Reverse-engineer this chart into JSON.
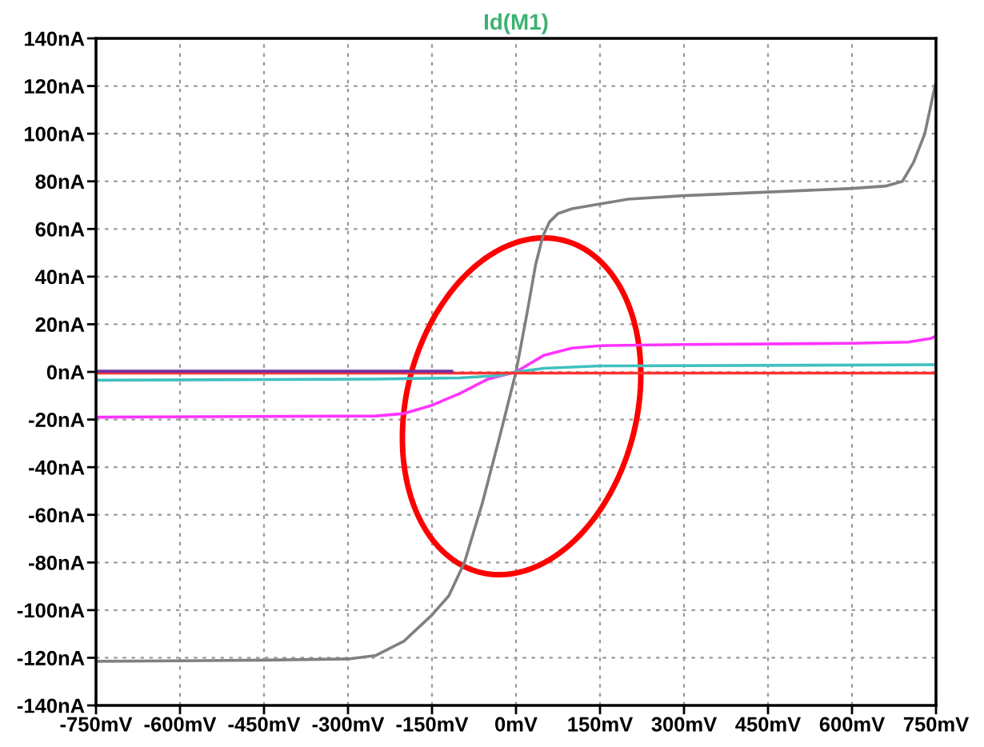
{
  "chart_data": {
    "type": "line",
    "title": "Id(M1)",
    "xlim": [
      -750,
      750
    ],
    "ylim": [
      -140,
      140
    ],
    "xticks": [
      {
        "value": -750,
        "label": "-750mV"
      },
      {
        "value": -600,
        "label": "-600mV"
      },
      {
        "value": -450,
        "label": "-450mV"
      },
      {
        "value": -300,
        "label": "-300mV"
      },
      {
        "value": -150,
        "label": "-150mV"
      },
      {
        "value": 0,
        "label": "0mV"
      },
      {
        "value": 150,
        "label": "150mV"
      },
      {
        "value": 300,
        "label": "300mV"
      },
      {
        "value": 450,
        "label": "450mV"
      },
      {
        "value": 600,
        "label": "600mV"
      },
      {
        "value": 750,
        "label": "750mV"
      }
    ],
    "yticks": [
      {
        "value": -140,
        "label": "-140nA"
      },
      {
        "value": -120,
        "label": "-120nA"
      },
      {
        "value": -100,
        "label": "-100nA"
      },
      {
        "value": -80,
        "label": "-80nA"
      },
      {
        "value": -60,
        "label": "-60nA"
      },
      {
        "value": -40,
        "label": "-40nA"
      },
      {
        "value": -20,
        "label": "-20nA"
      },
      {
        "value": 0,
        "label": "0nA"
      },
      {
        "value": 20,
        "label": "20nA"
      },
      {
        "value": 40,
        "label": "40nA"
      },
      {
        "value": 60,
        "label": "60nA"
      },
      {
        "value": 80,
        "label": "80nA"
      },
      {
        "value": 100,
        "label": "100nA"
      },
      {
        "value": 120,
        "label": "120nA"
      },
      {
        "value": 140,
        "label": "140nA"
      }
    ],
    "grid": true,
    "line_style": "solid",
    "marker": "none",
    "series": [
      {
        "color": "#808080",
        "x": [
          -750,
          -450,
          -300,
          -250,
          -200,
          -150,
          -120,
          -92,
          -60,
          -30,
          0,
          20,
          35,
          48,
          60,
          75,
          100,
          150,
          200,
          300,
          450,
          600,
          660,
          690,
          710,
          730,
          750
        ],
        "values": [
          -121.5,
          -121,
          -120.5,
          -119,
          -113,
          -102,
          -94,
          -80,
          -55,
          -28,
          0,
          25,
          45,
          57,
          63,
          66.5,
          68.5,
          70.5,
          72.5,
          74,
          75.5,
          77,
          78,
          80,
          88,
          100,
          122
        ]
      },
      {
        "color": "#ff33ff",
        "x": [
          -750,
          -250,
          -200,
          -150,
          -100,
          -50,
          0,
          50,
          100,
          150,
          300,
          600,
          700,
          740,
          750
        ],
        "values": [
          -19,
          -18.5,
          -17.5,
          -14,
          -9,
          -3,
          0,
          7,
          10,
          11,
          11.5,
          12,
          12.5,
          14,
          15
        ]
      },
      {
        "color": "#40c0c0",
        "x": [
          -750,
          -250,
          -100,
          -30,
          0,
          50,
          150,
          750
        ],
        "values": [
          -3.5,
          -3,
          -2.5,
          -1.5,
          0,
          1.5,
          2.5,
          3
        ]
      },
      {
        "color": "#ff3333",
        "x": [
          -750,
          750
        ],
        "values": [
          -0.5,
          -0.5
        ]
      },
      {
        "color": "#7030a0",
        "x": [
          -750,
          -115
        ],
        "values": [
          0.3,
          0.3
        ]
      }
    ]
  }
}
